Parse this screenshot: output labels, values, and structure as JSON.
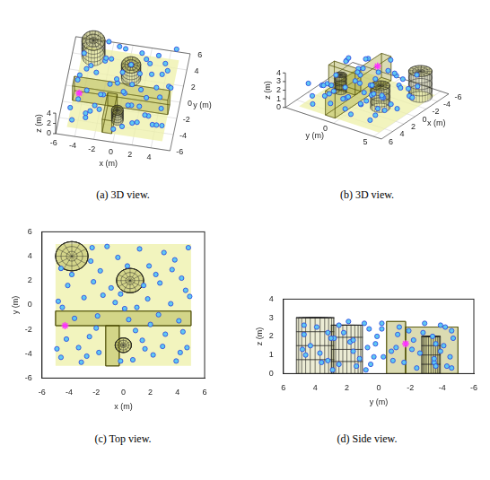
{
  "chart_data": [
    {
      "type": "scatter3d",
      "title": "(a) 3D view.",
      "xlabel": "x (m)",
      "ylabel": "y (m)",
      "zlabel": "z (m)",
      "xlim": [
        -6,
        6
      ],
      "ylim": [
        -6,
        6
      ],
      "zlim": [
        0,
        4
      ],
      "xticks": [
        -6,
        -4,
        -2,
        0,
        2,
        4
      ],
      "yticks": [
        -6,
        -4,
        -2,
        0,
        2,
        4,
        6
      ],
      "zticks": [
        0,
        2,
        4
      ]
    },
    {
      "type": "scatter3d",
      "title": "(b) 3D view.",
      "xlabel": "x (m)",
      "ylabel": "y (m)",
      "zlabel": "z (m)",
      "xlim": [
        -6,
        6
      ],
      "ylim": [
        -6,
        6
      ],
      "zlim": [
        0,
        4
      ],
      "xticks": [
        6,
        4,
        2,
        0,
        -2,
        -4,
        -6
      ],
      "yticks": [
        0,
        5
      ],
      "zticks": [
        0,
        1,
        2,
        3,
        4
      ]
    },
    {
      "type": "scatter",
      "title": "(c) Top view.",
      "xlabel": "x (m)",
      "ylabel": "y (m)",
      "xlim": [
        -6,
        6
      ],
      "ylim": [
        -6,
        6
      ],
      "xticks": [
        -6,
        -4,
        -2,
        0,
        2,
        4,
        6
      ],
      "yticks": [
        -6,
        -4,
        -2,
        0,
        2,
        4,
        6
      ]
    },
    {
      "type": "scatter",
      "title": "(d) Side view.",
      "xlabel": "y (m)",
      "ylabel": "z (m)",
      "xlim": [
        6,
        -6
      ],
      "ylim": [
        0,
        4
      ],
      "xticks": [
        6,
        4,
        2,
        0,
        -2,
        -4,
        -6
      ],
      "yticks": [
        0,
        1,
        2,
        3,
        4
      ]
    }
  ],
  "scene": {
    "points": {
      "color": "#5ec8f2",
      "marker": "circle",
      "x": [
        -4.6,
        -3.1,
        -1.8,
        0.7,
        2.2,
        3.9,
        4.7,
        -4.2,
        -2.5,
        1.4,
        3.1,
        4.4,
        -3.6,
        -1.9,
        0.4,
        2.6,
        4.1,
        -4.8,
        -2.9,
        -0.6,
        1.8,
        3.5,
        -4.1,
        -2.2,
        -0.9,
        2.7,
        4.6,
        -1.7,
        1.9,
        3.6,
        -2.4,
        -0.4,
        1.2,
        3.0,
        4.8,
        -1.2,
        -4.9,
        -0.2,
        2.9,
        -3.3,
        0.9,
        -2.0,
        2.0,
        4.9,
        -3.8,
        -0.2,
        1.5,
        3.8,
        -4.5,
        0.1,
        -2.7,
        1.6,
        4.2,
        -1.5,
        2.4,
        -2.3,
        0.3,
        4.3,
        -4.6,
        1.0
      ],
      "y": [
        -4.3,
        -4.7,
        -3.9,
        -4.5,
        -4.1,
        -4.6,
        -3.5,
        -2.8,
        -2.6,
        -2.9,
        -2.4,
        -2.2,
        -1.1,
        -0.9,
        -1.2,
        -0.8,
        -1.3,
        0.3,
        0.6,
        0.2,
        0.5,
        0.1,
        1.6,
        1.9,
        1.4,
        1.8,
        1.2,
        2.8,
        3.2,
        2.9,
        3.6,
        3.9,
        4.6,
        4.3,
        4.7,
        4.8,
        -3.6,
        -4.6,
        -3.4,
        -3.5,
        -2.1,
        -1.9,
        -1.6,
        0.7,
        2.5,
        0.9,
        1.6,
        3.7,
        -0.2,
        -0.3,
        -4.2,
        -3.6,
        -3.9,
        0.8,
        2.5,
        4.7,
        3.2,
        2.2,
        3.0,
        -0.2
      ],
      "z": [
        0.4,
        1.9,
        2.6,
        0.9,
        1.5,
        2.3,
        0.6,
        2.2,
        1.1,
        2.7,
        0.3,
        1.8,
        1.4,
        0.7,
        2.1,
        1.2,
        2.5,
        0.9,
        2.4,
        1.6,
        0.5,
        2.0,
        1.2,
        2.8,
        0.4,
        1.7,
        0.8,
        1.9,
        2.2,
        0.2,
        0.6,
        2.5,
        1.0,
        1.5,
        2.6,
        1.3,
        1.6,
        0.3,
        2.0,
        0.8,
        1.3,
        2.3,
        0.6,
        1.4,
        0.5,
        2.7,
        1.8,
        1.1,
        2.7,
        0.9,
        2.5,
        0.4,
        1.2,
        0.2,
        2.6,
        2.1,
        0.7,
        2.2,
        1.9,
        2.4
      ]
    },
    "target": {
      "x": -4.3,
      "y": -1.7,
      "z": 1.6,
      "color": "#ff33ff",
      "marker": "star"
    },
    "floor": {
      "x": [
        -5,
        5
      ],
      "y": [
        -5,
        5
      ],
      "z": 0,
      "color": "#eef0a8"
    },
    "boxes": [
      {
        "x": [
          -5,
          5
        ],
        "y": [
          -1.7,
          -0.5
        ],
        "z": [
          0,
          2.8
        ],
        "color": "#9c9c28"
      },
      {
        "x": [
          -1.3,
          -0.3
        ],
        "y": [
          -5,
          -1.7
        ],
        "z": [
          0,
          2.5
        ],
        "color": "#9c9c28"
      }
    ],
    "cylinders": [
      {
        "center": [
          -3.8,
          4
        ],
        "radius": 1.2,
        "z": [
          0,
          3
        ],
        "color": "#9c9c28"
      },
      {
        "center": [
          0.5,
          2
        ],
        "radius": 1,
        "z": [
          0,
          2.6
        ],
        "color": "#9c9c28"
      },
      {
        "center": [
          0,
          -3.3
        ],
        "radius": 0.6,
        "z": [
          0,
          2
        ],
        "color": "#9c9c28"
      }
    ]
  }
}
